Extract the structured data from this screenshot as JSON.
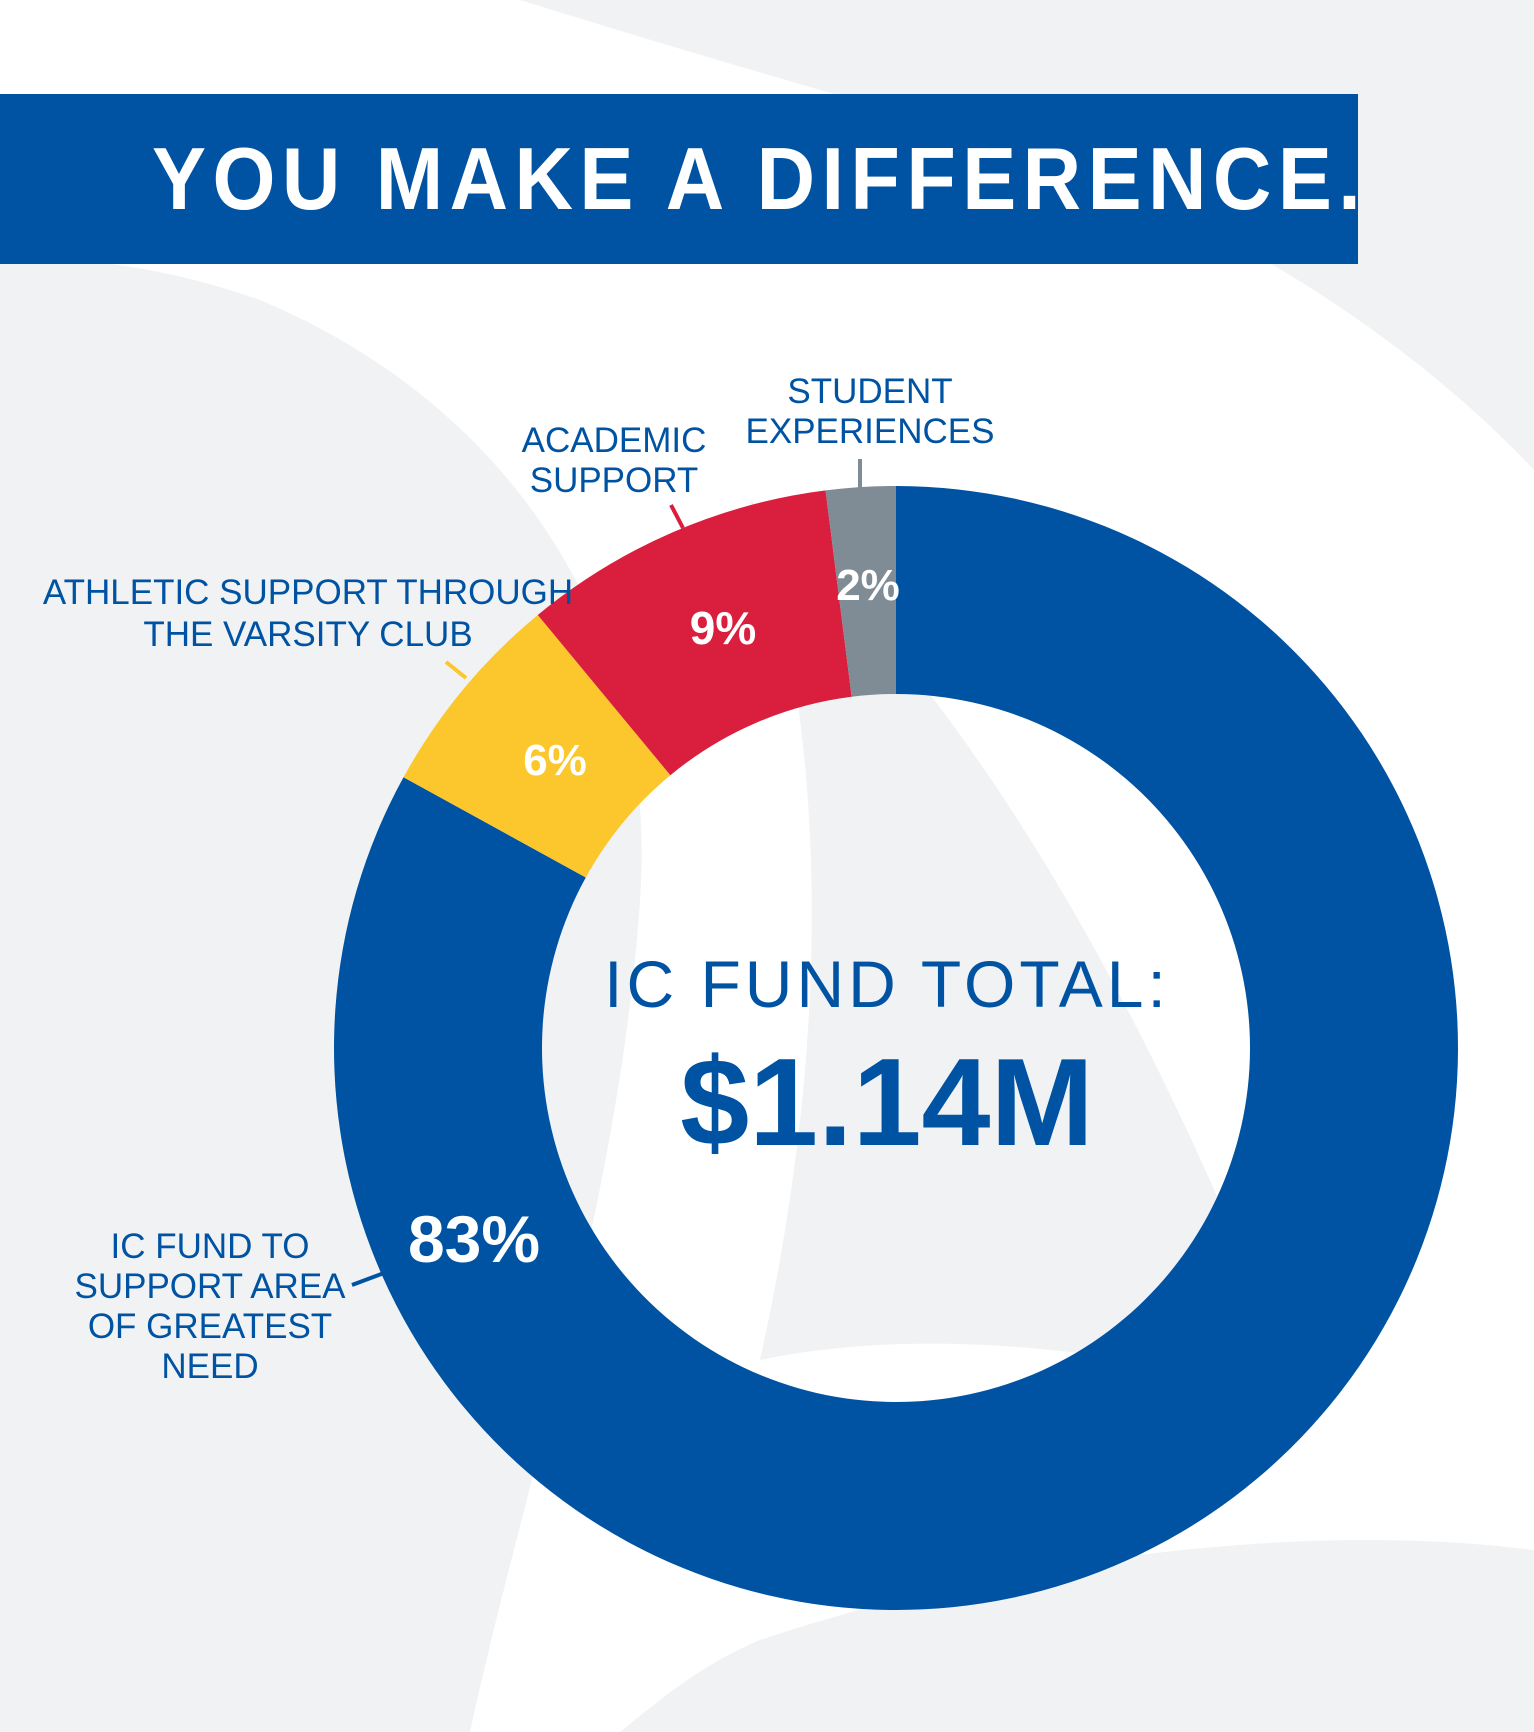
{
  "header": {
    "title": "YOU MAKE A DIFFERENCE."
  },
  "center": {
    "title": "IC FUND TOTAL:",
    "value": "$1.14M"
  },
  "colors": {
    "blue": "#0053a2",
    "gray": "#7f8c96",
    "red": "#d91f3d",
    "yellow": "#fcc72c",
    "background_swoosh": "#f1f2f4"
  },
  "chart_data": {
    "type": "pie",
    "donut": true,
    "title": "IC FUND TOTAL:",
    "total": "$1.14M",
    "slices": [
      {
        "label_lines": [
          "IC FUND TO",
          "SUPPORT AREA",
          "OF GREATEST",
          "NEED"
        ],
        "value": 83,
        "display": "83%",
        "color": "#0053a2"
      },
      {
        "label_lines": [
          "ATHLETIC SUPPORT THROUGH",
          "THE VARSITY CLUB"
        ],
        "value": 6,
        "display": "6%",
        "color": "#fcc72c"
      },
      {
        "label_lines": [
          "ACADEMIC",
          "SUPPORT"
        ],
        "value": 9,
        "display": "9%",
        "color": "#d91f3d"
      },
      {
        "label_lines": [
          "STUDENT",
          "EXPERIENCES"
        ],
        "value": 2,
        "display": "2%",
        "color": "#7f8c96"
      }
    ]
  }
}
